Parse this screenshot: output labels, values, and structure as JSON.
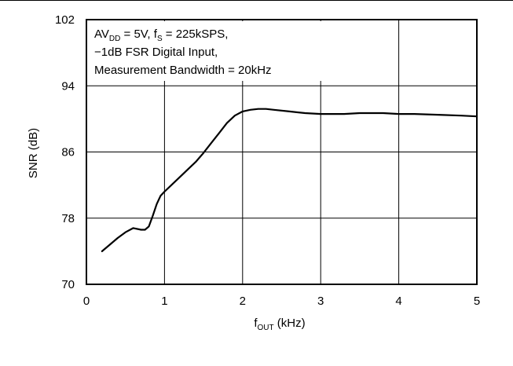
{
  "chart_data": {
    "type": "line",
    "xlabel": {
      "main": "f",
      "sub": "OUT",
      "rest": " (kHz)"
    },
    "ylabel": "SNR (dB)",
    "xlim": [
      0,
      5
    ],
    "ylim": [
      70,
      102
    ],
    "xticks": [
      "0",
      "1",
      "2",
      "3",
      "4",
      "5"
    ],
    "yticks": [
      "70",
      "78",
      "86",
      "94",
      "102"
    ],
    "grid": true,
    "annotation": {
      "line1": {
        "p1": "AV",
        "s1": "DD",
        "p2": " = 5V, f",
        "s2": "S",
        "p3": " = 225kSPS,"
      },
      "line2": "−1dB FSR Digital Input,",
      "line3": "Measurement Bandwidth = 20kHz"
    },
    "series": [
      {
        "x": [
          0.2,
          0.3,
          0.4,
          0.5,
          0.6,
          0.7,
          0.75,
          0.8,
          0.85,
          0.9,
          0.95,
          1.0,
          1.1,
          1.2,
          1.3,
          1.4,
          1.5,
          1.6,
          1.7,
          1.8,
          1.9,
          2.0,
          2.1,
          2.2,
          2.3,
          2.4,
          2.6,
          2.8,
          3.0,
          3.3,
          3.5,
          3.8,
          4.0,
          4.2,
          4.5,
          4.8,
          5.0
        ],
        "y": [
          74.0,
          74.8,
          75.6,
          76.3,
          76.8,
          76.6,
          76.6,
          77.0,
          78.3,
          79.7,
          80.7,
          81.2,
          82.1,
          83.0,
          83.9,
          84.8,
          85.9,
          87.1,
          88.3,
          89.5,
          90.4,
          90.9,
          91.1,
          91.2,
          91.2,
          91.1,
          90.9,
          90.7,
          90.6,
          90.6,
          90.7,
          90.7,
          90.6,
          90.6,
          90.5,
          90.4,
          90.3
        ]
      }
    ]
  }
}
